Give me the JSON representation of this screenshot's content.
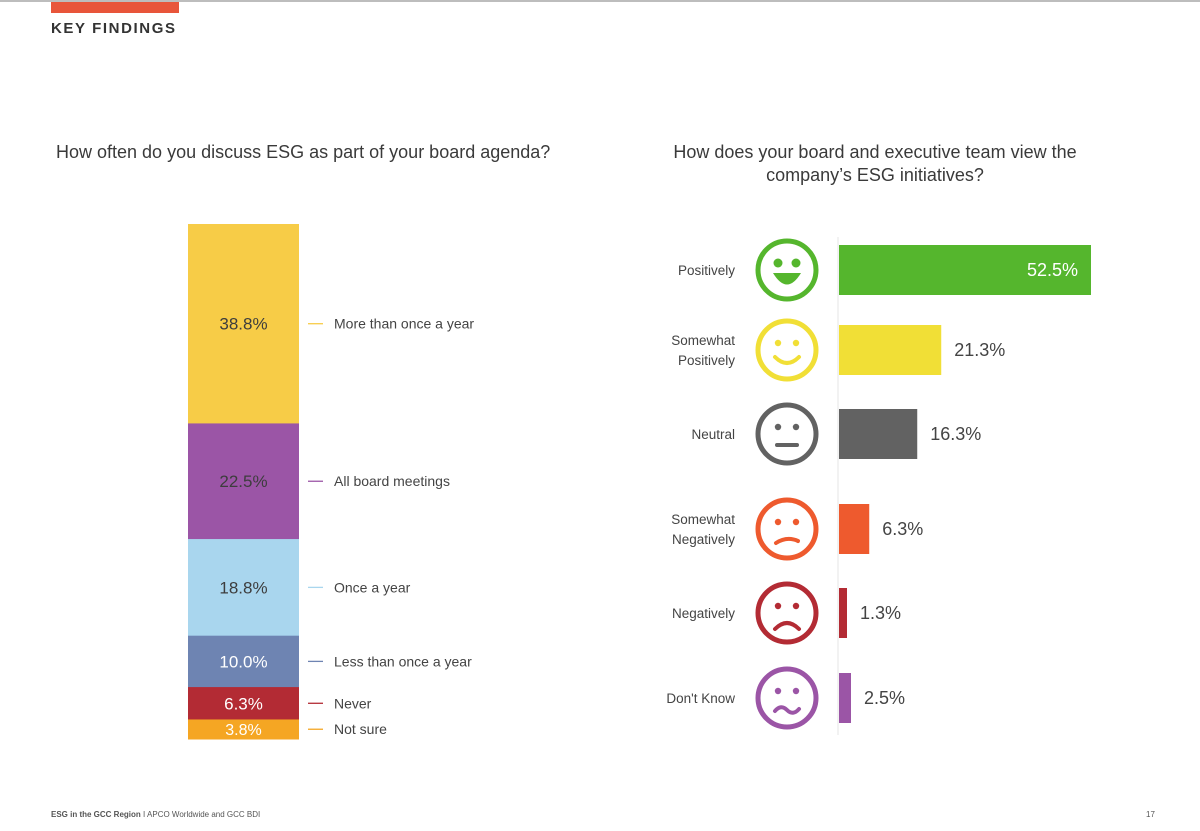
{
  "header": {
    "section_label": "KEY FINDINGS",
    "accent_color": "#e8553a"
  },
  "chart_data": [
    {
      "type": "bar",
      "subtype": "stacked-100",
      "title": "How often do you discuss ESG as part of your board agenda?",
      "unit": "%",
      "segments": [
        {
          "category": "More than once a year",
          "value": 38.8,
          "label": "38.8%",
          "color": "#f7cc47"
        },
        {
          "category": "All board meetings",
          "value": 22.5,
          "label": "22.5%",
          "color": "#9b55a6"
        },
        {
          "category": "Once a year",
          "value": 18.8,
          "label": "18.8%",
          "color": "#a9d6ee"
        },
        {
          "category": "Less than once a year",
          "value": 10.0,
          "label": "10.0%",
          "color": "#6e84b2"
        },
        {
          "category": "Never",
          "value": 6.3,
          "label": "6.3%",
          "color": "#b32b34"
        },
        {
          "category": "Not sure",
          "value": 3.8,
          "label": "3.8%",
          "color": "#f5a623"
        }
      ]
    },
    {
      "type": "bar",
      "orientation": "horizontal",
      "title": "How does your board and executive team view the company’s ESG initiatives?",
      "unit": "%",
      "xlim": [
        0,
        52.5
      ],
      "bars": [
        {
          "category": "Positively",
          "category_lines": [
            "Positively"
          ],
          "value": 52.5,
          "label": "52.5%",
          "color": "#55b62d",
          "face": "happy",
          "label_inside": true
        },
        {
          "category": "Somewhat Positively",
          "category_lines": [
            "Somewhat",
            "Positively"
          ],
          "value": 21.3,
          "label": "21.3%",
          "color": "#f1df36",
          "face": "smile",
          "label_inside": false
        },
        {
          "category": "Neutral",
          "category_lines": [
            "Neutral"
          ],
          "value": 16.3,
          "label": "16.3%",
          "color": "#626262",
          "face": "neutral",
          "label_inside": false
        },
        {
          "category": "Somewhat Negatively",
          "category_lines": [
            "Somewhat",
            "Negatively"
          ],
          "value": 6.3,
          "label": "6.3%",
          "color": "#ee5a2e",
          "face": "slight-frown",
          "label_inside": false
        },
        {
          "category": "Negatively",
          "category_lines": [
            "Negatively"
          ],
          "value": 1.3,
          "label": "1.3%",
          "color": "#b32b34",
          "face": "frown",
          "label_inside": false
        },
        {
          "category": "Don't Know",
          "category_lines": [
            "Don't Know"
          ],
          "value": 2.5,
          "label": "2.5%",
          "color": "#9b55a6",
          "face": "confused",
          "label_inside": false
        }
      ]
    }
  ],
  "footer": {
    "report": "ESG in the GCC Region",
    "separator": "I",
    "credit": "APCO Worldwide and GCC BDI",
    "page_number": "17"
  }
}
